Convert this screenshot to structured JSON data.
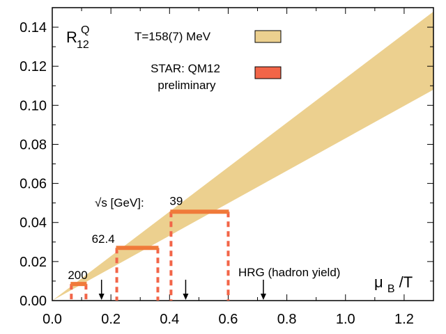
{
  "chart_data": {
    "type": "area",
    "title": "",
    "xlabel": "μ_B/T",
    "ylabel": "R_12^Q",
    "ylabel_main": "R",
    "ylabel_sup": "Q",
    "ylabel_sub": "12",
    "xlabel_main": "μ",
    "xlabel_sub": "B",
    "xlabel_tail": "/T",
    "xlim": [
      0.0,
      1.3
    ],
    "ylim": [
      0.0,
      0.15
    ],
    "x_ticks": [
      0.0,
      0.2,
      0.4,
      0.6,
      0.8,
      1.0,
      1.2
    ],
    "x_tick_labels": [
      "0.0",
      "0.2",
      "0.4",
      "0.6",
      "0.8",
      "1.0",
      "1.2"
    ],
    "y_ticks": [
      0.0,
      0.02,
      0.04,
      0.06,
      0.08,
      0.1,
      0.12,
      0.14
    ],
    "y_tick_labels": [
      "0.00",
      "0.02",
      "0.04",
      "0.06",
      "0.08",
      "0.10",
      "0.12",
      "0.14"
    ],
    "band": {
      "name": "T=158(7) MeV",
      "color": "#ecd08f",
      "x": [
        0.0,
        1.3
      ],
      "upper": [
        0.0,
        0.148
      ],
      "lower": [
        0.0,
        0.108
      ]
    },
    "star_data": {
      "name": "STAR: QM12 preliminary",
      "legend_lines": [
        "STAR: QM12",
        "preliminary"
      ],
      "color": "#f07a3a",
      "dash_color": "#f26548",
      "points": [
        {
          "label": "200",
          "x_low": 0.065,
          "x_high": 0.115,
          "y": 0.0085
        },
        {
          "label": "62.4",
          "x_low": 0.22,
          "x_high": 0.36,
          "y": 0.027
        },
        {
          "label": "39",
          "x_low": 0.405,
          "x_high": 0.6,
          "y": 0.0455
        }
      ]
    },
    "sqrt_s_label": "√s [GeV]:",
    "hrg": {
      "label": "HRG (hadron yield)",
      "arrows_x": [
        0.168,
        0.455,
        0.72
      ]
    },
    "legend_placement": "top-center",
    "grid": false
  }
}
